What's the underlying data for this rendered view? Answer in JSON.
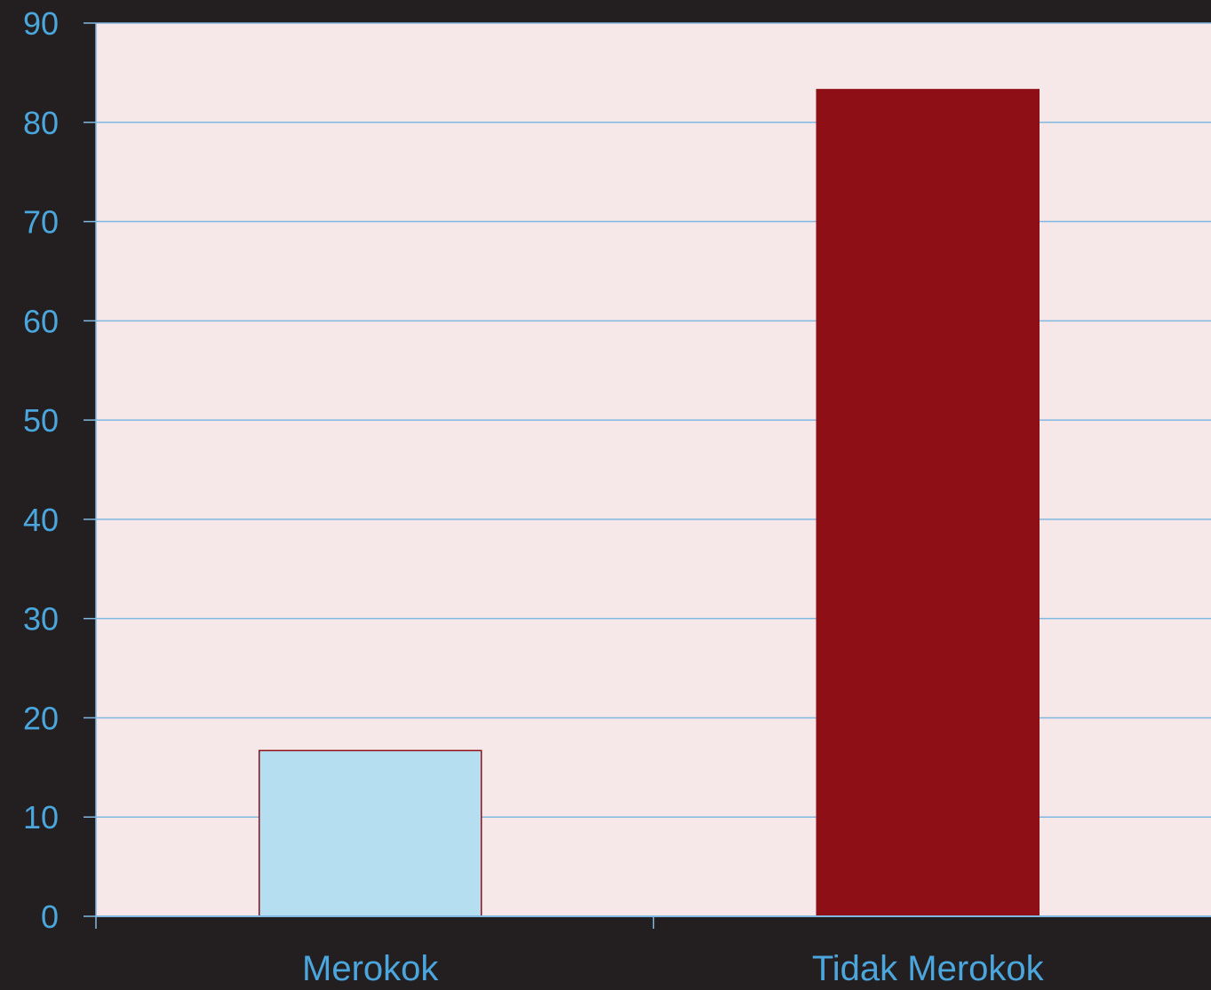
{
  "chart_data": {
    "type": "bar",
    "categories": [
      "Merokok",
      "Tidak Merokok"
    ],
    "values": [
      16.7,
      83.3
    ],
    "ylim": [
      0,
      90
    ],
    "yticks": [
      0,
      10,
      20,
      30,
      40,
      50,
      60,
      70,
      80,
      90
    ],
    "title": "",
    "xlabel": "",
    "ylabel": "",
    "grid": true,
    "legend": "none"
  },
  "colors": {
    "page_background": "#231f20",
    "plot_background": "#f6e8e8",
    "gridline": "#7fb8e0",
    "axis_text": "#4aa6dc",
    "bar_fills": [
      "#b5dff0",
      "#8e1016"
    ],
    "bar_stroke": "#8e1016"
  }
}
